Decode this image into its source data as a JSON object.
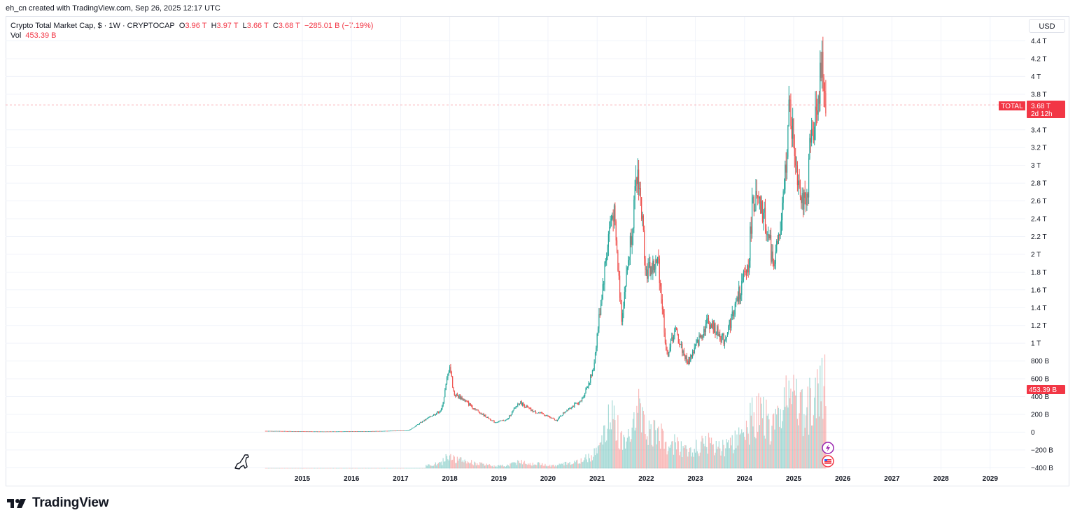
{
  "header": {
    "attribution": "eh_cn created with TradingView.com, Sep 26, 2025 12:17 UTC"
  },
  "legend": {
    "symbol": "Crypto Total Market Cap, $ · 1W · CRYPTOCAP",
    "open_label": "O",
    "open": "3.96 T",
    "high_label": "H",
    "high": "3.97 T",
    "low_label": "L",
    "low": "3.66 T",
    "close_label": "C",
    "close": "3.68 T",
    "change": "−285.01 B (−7.19%)",
    "vol_label": "Vol",
    "vol": "453.39 B"
  },
  "currency_button": "USD",
  "price_tags": {
    "symbol_tag": "TOTAL",
    "last_price": "3.68 T",
    "countdown": "2d 12h",
    "last_volume": "453.39 B"
  },
  "brand": {
    "name": "TradingView"
  },
  "colors": {
    "up": "#26a69a",
    "down": "#ef5350",
    "tag": "#f23645",
    "grid": "#f0f3fa",
    "axis_text": "#131722"
  },
  "chart_data": {
    "type": "candlestick",
    "symbol": "TOTAL",
    "interval": "1W",
    "y_unit": "USD",
    "ylim": [
      -400000000000,
      4400000000000
    ],
    "yticks": [
      {
        "label": "4.4 T",
        "value": 4400000000000
      },
      {
        "label": "4.2 T",
        "value": 4200000000000
      },
      {
        "label": "4 T",
        "value": 4000000000000
      },
      {
        "label": "3.8 T",
        "value": 3800000000000
      },
      {
        "label": "3.4 T",
        "value": 3400000000000
      },
      {
        "label": "3.2 T",
        "value": 3200000000000
      },
      {
        "label": "3 T",
        "value": 3000000000000
      },
      {
        "label": "2.8 T",
        "value": 2800000000000
      },
      {
        "label": "2.6 T",
        "value": 2600000000000
      },
      {
        "label": "2.4 T",
        "value": 2400000000000
      },
      {
        "label": "2.2 T",
        "value": 2200000000000
      },
      {
        "label": "2 T",
        "value": 2000000000000
      },
      {
        "label": "1.8 T",
        "value": 1800000000000
      },
      {
        "label": "1.6 T",
        "value": 1600000000000
      },
      {
        "label": "1.4 T",
        "value": 1400000000000
      },
      {
        "label": "1.2 T",
        "value": 1200000000000
      },
      {
        "label": "1 T",
        "value": 1000000000000
      },
      {
        "label": "800 B",
        "value": 800000000000
      },
      {
        "label": "600 B",
        "value": 600000000000
      },
      {
        "label": "400 B",
        "value": 400000000000
      },
      {
        "label": "200 B",
        "value": 200000000000
      },
      {
        "label": "0",
        "value": 0
      },
      {
        "label": "−200 B",
        "value": -200000000000
      },
      {
        "label": "−400 B",
        "value": -400000000000
      }
    ],
    "xticks": [
      "2015",
      "2016",
      "2017",
      "2018",
      "2019",
      "2020",
      "2021",
      "2022",
      "2023",
      "2024",
      "2025",
      "2026",
      "2027",
      "2028",
      "2029"
    ],
    "last_close": 3680000000000,
    "last_volume": 453390000000,
    "vol_max": 850000000000,
    "price_path": [
      [
        "2014-04",
        14000000000
      ],
      [
        "2015-06",
        7000000000
      ],
      [
        "2016-06",
        11000000000
      ],
      [
        "2017-03",
        20000000000
      ],
      [
        "2017-06",
        110000000000
      ],
      [
        "2017-11",
        250000000000
      ],
      [
        "2018-01",
        760000000000
      ],
      [
        "2018-02",
        430000000000
      ],
      [
        "2018-04",
        380000000000
      ],
      [
        "2018-08",
        230000000000
      ],
      [
        "2018-12",
        110000000000
      ],
      [
        "2019-03",
        140000000000
      ],
      [
        "2019-06",
        340000000000
      ],
      [
        "2019-09",
        240000000000
      ],
      [
        "2019-12",
        200000000000
      ],
      [
        "2020-03",
        130000000000
      ],
      [
        "2020-06",
        270000000000
      ],
      [
        "2020-09",
        340000000000
      ],
      [
        "2020-12",
        680000000000
      ],
      [
        "2021-02",
        1500000000000
      ],
      [
        "2021-04",
        2300000000000
      ],
      [
        "2021-05",
        2500000000000
      ],
      [
        "2021-07",
        1300000000000
      ],
      [
        "2021-09",
        2100000000000
      ],
      [
        "2021-11",
        2950000000000
      ],
      [
        "2022-01",
        1800000000000
      ],
      [
        "2022-04",
        1900000000000
      ],
      [
        "2022-06",
        850000000000
      ],
      [
        "2022-08",
        1150000000000
      ],
      [
        "2022-11",
        780000000000
      ],
      [
        "2023-01",
        950000000000
      ],
      [
        "2023-04",
        1250000000000
      ],
      [
        "2023-08",
        1030000000000
      ],
      [
        "2023-11",
        1450000000000
      ],
      [
        "2024-02",
        1900000000000
      ],
      [
        "2024-03",
        2650000000000
      ],
      [
        "2024-06",
        2400000000000
      ],
      [
        "2024-08",
        1900000000000
      ],
      [
        "2024-10",
        2300000000000
      ],
      [
        "2024-12",
        3650000000000
      ],
      [
        "2025-02",
        2900000000000
      ],
      [
        "2025-04",
        2450000000000
      ],
      [
        "2025-05",
        3200000000000
      ],
      [
        "2025-07",
        3800000000000
      ],
      [
        "2025-08",
        4100000000000
      ],
      [
        "2025-09",
        3680000000000
      ]
    ]
  }
}
